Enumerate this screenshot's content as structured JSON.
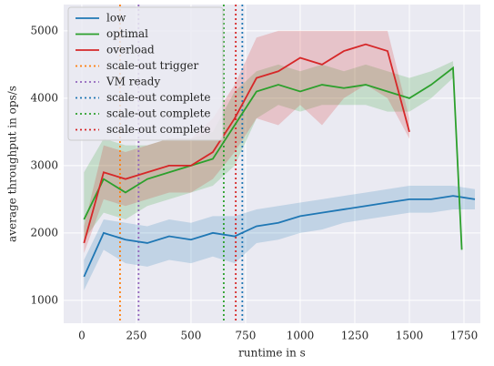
{
  "chart_data": {
    "type": "line",
    "xlabel": "runtime in s",
    "ylabel": "average throughput in ops/s",
    "xlim": [
      -83,
      1825
    ],
    "ylim": [
      660,
      5390
    ],
    "xticks": [
      0,
      250,
      500,
      750,
      1000,
      1250,
      1500,
      1750
    ],
    "yticks": [
      1000,
      2000,
      3000,
      4000,
      5000
    ],
    "grid": true,
    "legend": "upper left",
    "series": [
      {
        "name": "low",
        "color": "#1f77b4",
        "x": [
          10,
          100,
          200,
          300,
          400,
          500,
          600,
          700,
          800,
          900,
          1000,
          1100,
          1200,
          1300,
          1400,
          1500,
          1600,
          1700,
          1800
        ],
        "values": [
          1350,
          2000,
          1900,
          1850,
          1950,
          1900,
          2000,
          1950,
          2100,
          2150,
          2250,
          2300,
          2350,
          2400,
          2450,
          2500,
          2500,
          2550,
          2500
        ],
        "lower": [
          1150,
          1750,
          1550,
          1500,
          1600,
          1550,
          1650,
          1550,
          1850,
          1900,
          2000,
          2050,
          2150,
          2200,
          2250,
          2300,
          2300,
          2350,
          2350
        ],
        "upper": [
          1600,
          2200,
          2150,
          2100,
          2200,
          2150,
          2250,
          2250,
          2350,
          2400,
          2450,
          2500,
          2550,
          2600,
          2650,
          2700,
          2700,
          2700,
          2650
        ]
      },
      {
        "name": "optimal",
        "color": "#2ca02c",
        "x": [
          10,
          100,
          200,
          300,
          400,
          500,
          600,
          700,
          800,
          900,
          1000,
          1100,
          1200,
          1300,
          1400,
          1500,
          1600,
          1700,
          1740
        ],
        "values": [
          2200,
          2800,
          2600,
          2800,
          2900,
          3000,
          3100,
          3600,
          4100,
          4200,
          4100,
          4200,
          4150,
          4200,
          4100,
          4000,
          4200,
          4450,
          1750
        ],
        "lower": [
          1900,
          2300,
          2200,
          2400,
          2500,
          2600,
          2700,
          3000,
          3700,
          3900,
          3800,
          3900,
          3900,
          3900,
          3800,
          3800,
          4000,
          4300,
          1700
        ],
        "upper": [
          2900,
          3400,
          3300,
          3300,
          3400,
          3400,
          3500,
          4100,
          4400,
          4500,
          4400,
          4500,
          4400,
          4500,
          4400,
          4300,
          4400,
          4550,
          1800
        ]
      },
      {
        "name": "overload",
        "color": "#d62728",
        "x": [
          10,
          100,
          200,
          300,
          400,
          500,
          600,
          700,
          800,
          900,
          1000,
          1100,
          1200,
          1300,
          1400,
          1500
        ],
        "values": [
          1850,
          2900,
          2800,
          2900,
          3000,
          3000,
          3200,
          3700,
          4300,
          4400,
          4600,
          4500,
          4700,
          4800,
          4700,
          3500
        ],
        "lower": [
          1700,
          2500,
          2400,
          2500,
          2600,
          2600,
          2800,
          3200,
          3700,
          3600,
          3900,
          3600,
          4000,
          4200,
          4000,
          3400
        ],
        "upper": [
          2100,
          3300,
          3200,
          3300,
          3400,
          3400,
          3700,
          4200,
          4900,
          5000,
          5000,
          5000,
          5000,
          5000,
          5000,
          3700
        ]
      }
    ],
    "vlines": [
      {
        "name": "scale-out trigger",
        "color": "#ff7f0e",
        "x": 175
      },
      {
        "name": "VM ready",
        "color": "#9467bd",
        "x": 260
      },
      {
        "name": "scale-out complete",
        "color": "#1f77b4",
        "x": 735
      },
      {
        "name": "scale-out complete",
        "color": "#2ca02c",
        "x": 650
      },
      {
        "name": "scale-out complete",
        "color": "#d62728",
        "x": 705
      }
    ]
  }
}
